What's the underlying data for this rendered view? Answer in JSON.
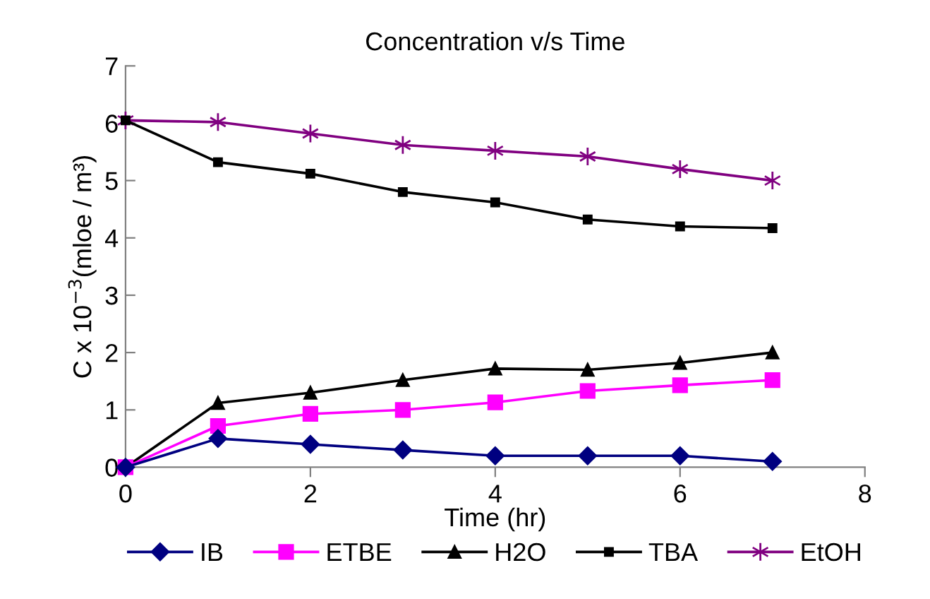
{
  "chart_data": {
    "type": "line",
    "title": "Concentration v/s Time",
    "xlabel": "Time (hr)",
    "ylabel": "C x 10$^{−3}$(mloe / m³)",
    "x": [
      0,
      1,
      2,
      3,
      4,
      5,
      6,
      7
    ],
    "xlim": [
      0,
      8
    ],
    "xticks": [
      0,
      2,
      4,
      6,
      8
    ],
    "ylim": [
      0,
      7
    ],
    "yticks": [
      0,
      1,
      2,
      3,
      4,
      5,
      6,
      7
    ],
    "grid": false,
    "legend": "bottom",
    "line_style": "solid",
    "series": [
      {
        "name": "IB",
        "color": "#000080",
        "marker": "diamond",
        "values": [
          0,
          0.5,
          0.4,
          0.3,
          0.2,
          0.2,
          0.2,
          0.1
        ]
      },
      {
        "name": "ETBE",
        "color": "#ff00ff",
        "marker": "square",
        "values": [
          0,
          0.72,
          0.93,
          1.0,
          1.13,
          1.33,
          1.43,
          1.52
        ]
      },
      {
        "name": "H2O",
        "color": "#000000",
        "marker": "triangle",
        "values": [
          0,
          1.12,
          1.3,
          1.52,
          1.72,
          1.7,
          1.82,
          2.0
        ]
      },
      {
        "name": "TBA",
        "color": "#000000",
        "marker": "square",
        "values": [
          6.05,
          5.32,
          5.12,
          4.8,
          4.62,
          4.32,
          4.2,
          4.17
        ]
      },
      {
        "name": "EtOH",
        "color": "#800080",
        "marker": "cross",
        "values": [
          6.05,
          6.02,
          5.82,
          5.62,
          5.52,
          5.42,
          5.2,
          5.0
        ]
      }
    ]
  }
}
